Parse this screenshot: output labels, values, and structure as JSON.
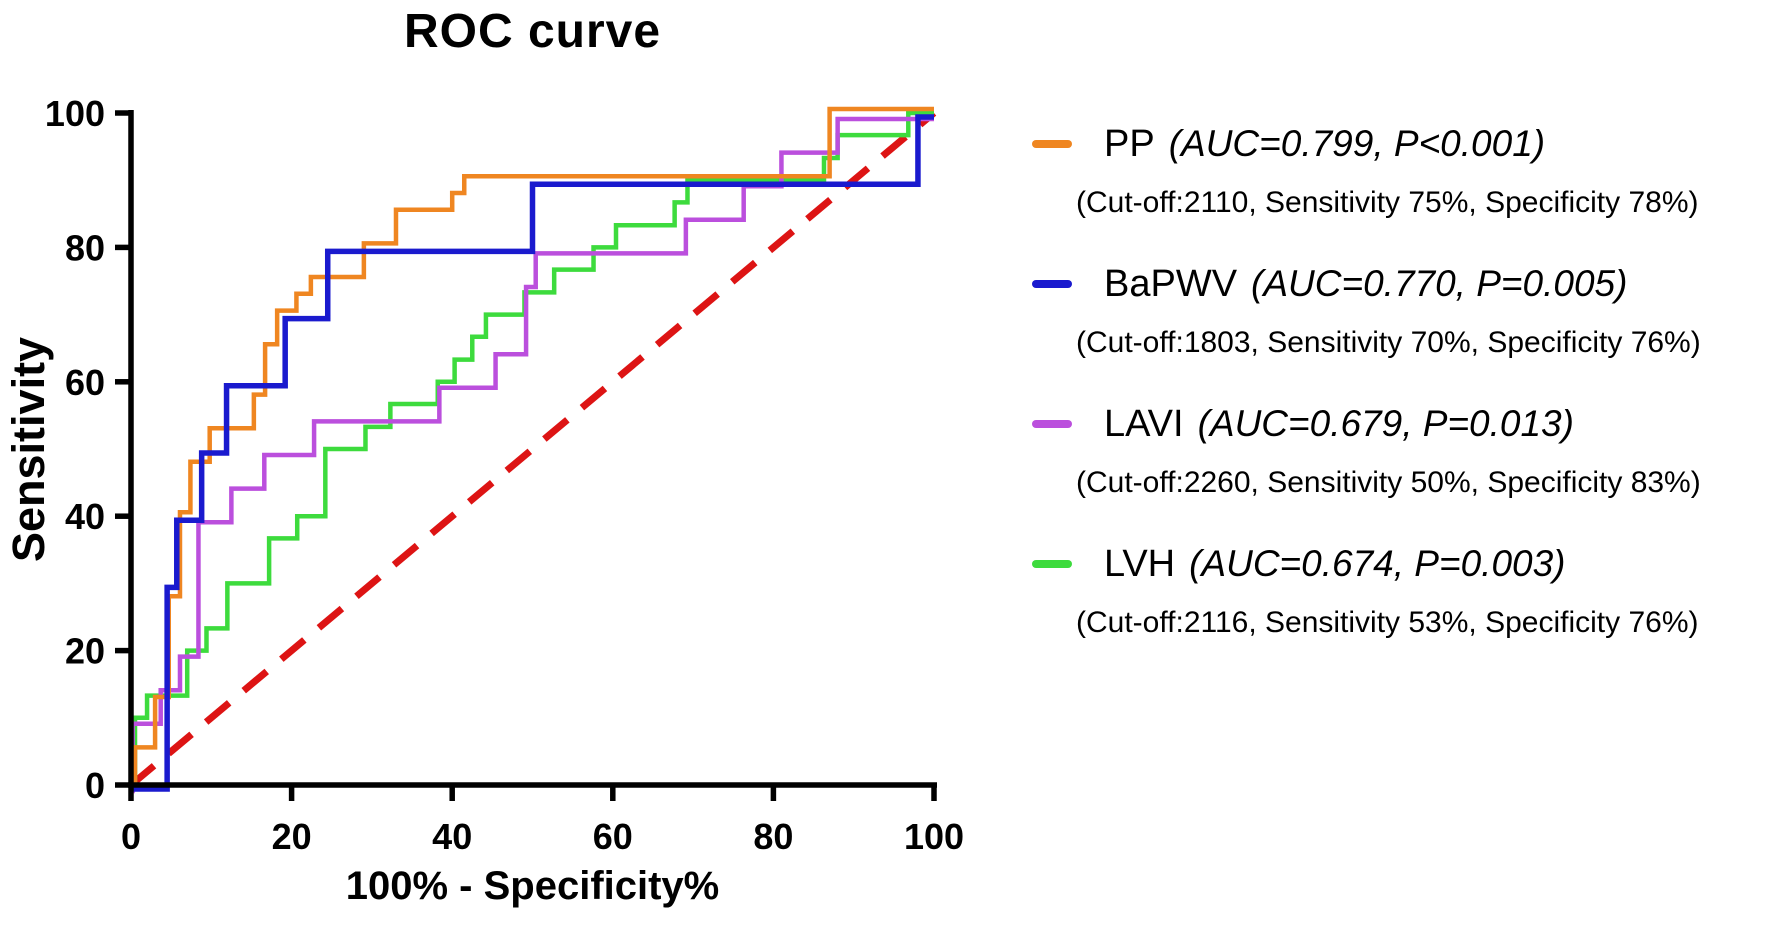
{
  "chart_data": {
    "type": "line",
    "subtype": "roc-step-curves",
    "title": "ROC curve",
    "xlabel": "100% - Specificity%",
    "ylabel": "Sensitivity",
    "xlim": [
      0,
      100
    ],
    "ylim": [
      0,
      100
    ],
    "x_ticks": [
      0,
      20,
      40,
      60,
      80,
      100
    ],
    "y_ticks": [
      0,
      20,
      40,
      60,
      80,
      100
    ],
    "grid": false,
    "legend_position": "right",
    "reference_line": {
      "name": "chance-diagonal",
      "style": "dashed",
      "color": "#dd1414",
      "from": [
        0,
        0
      ],
      "to": [
        100,
        100
      ]
    },
    "steps_encoding": "each step = [x = 100-specificity where curve rises, sensitivity after rise]; staircase starts at (0,0) and ends at (100,100)",
    "series": [
      {
        "name": "PP",
        "color": "#ef8621",
        "auc": 0.799,
        "p_value": "P<0.001",
        "cutoff": 2110,
        "sensitivity_pct": 75,
        "specificity_pct": 78,
        "steps": [
          [
            0.5,
            5
          ],
          [
            3,
            12.5
          ],
          [
            4.7,
            27.5
          ],
          [
            6.1,
            40
          ],
          [
            7.4,
            47.5
          ],
          [
            9.8,
            52.5
          ],
          [
            15.3,
            57.5
          ],
          [
            16.7,
            65
          ],
          [
            18.2,
            70
          ],
          [
            20.6,
            72.5
          ],
          [
            22.4,
            75
          ],
          [
            29,
            80
          ],
          [
            33,
            85
          ],
          [
            40,
            87.5
          ],
          [
            41.5,
            90
          ],
          [
            87,
            100
          ]
        ]
      },
      {
        "name": "BaPWV",
        "color": "#1a1ace",
        "auc": 0.77,
        "p_value": "P=0.005",
        "cutoff": 1803,
        "sensitivity_pct": 70,
        "specificity_pct": 76,
        "steps": [
          [
            4.5,
            30
          ],
          [
            5.7,
            40
          ],
          [
            8.8,
            50
          ],
          [
            11.9,
            60
          ],
          [
            19.2,
            70
          ],
          [
            24.5,
            80
          ],
          [
            50,
            90
          ],
          [
            98,
            100
          ]
        ]
      },
      {
        "name": "LAVI",
        "color": "#bb4fdd",
        "auc": 0.679,
        "p_value": "P=0.013",
        "cutoff": 2260,
        "sensitivity_pct": 50,
        "specificity_pct": 83,
        "steps": [
          [
            0.2,
            10
          ],
          [
            3.7,
            15
          ],
          [
            6.1,
            20
          ],
          [
            8.4,
            40
          ],
          [
            12.5,
            45
          ],
          [
            16.6,
            50
          ],
          [
            22.8,
            55
          ],
          [
            38.4,
            60
          ],
          [
            45.4,
            65
          ],
          [
            49.2,
            75
          ],
          [
            50.4,
            80
          ],
          [
            69.1,
            85
          ],
          [
            76.3,
            90
          ],
          [
            81,
            95
          ],
          [
            88,
            100
          ]
        ]
      },
      {
        "name": "LVH",
        "color": "#3ddb3d",
        "auc": 0.674,
        "p_value": "P=0.003",
        "cutoff": 2116,
        "sensitivity_pct": 53,
        "specificity_pct": 76,
        "steps": [
          [
            0.5,
            10
          ],
          [
            2,
            13.3
          ],
          [
            7,
            20
          ],
          [
            9.4,
            23.3
          ],
          [
            12,
            30
          ],
          [
            17.2,
            36.7
          ],
          [
            20.7,
            40
          ],
          [
            24.2,
            50
          ],
          [
            29.2,
            53.3
          ],
          [
            32.3,
            56.7
          ],
          [
            38.2,
            60
          ],
          [
            40.3,
            63.3
          ],
          [
            42.5,
            66.7
          ],
          [
            44.2,
            70
          ],
          [
            49,
            73.3
          ],
          [
            52.7,
            76.7
          ],
          [
            57.6,
            80
          ],
          [
            60.4,
            83.3
          ],
          [
            67.7,
            86.7
          ],
          [
            69.3,
            90
          ],
          [
            86.3,
            93.3
          ],
          [
            88,
            96.7
          ],
          [
            96.8,
            100
          ]
        ]
      }
    ]
  },
  "legend": {
    "entries": [
      {
        "name": "PP",
        "stats": "(AUC=0.799, P<0.001)",
        "detail": "(Cut-off:2110, Sensitivity 75%, Specificity 78%)",
        "color": "#ef8621"
      },
      {
        "name": "BaPWV",
        "stats": "(AUC=0.770, P=0.005)",
        "detail": "(Cut-off:1803, Sensitivity 70%, Specificity 76%)",
        "color": "#1a1ace"
      },
      {
        "name": "LAVI",
        "stats": "(AUC=0.679, P=0.013)",
        "detail": "(Cut-off:2260, Sensitivity 50%, Specificity 83%)",
        "color": "#bb4fdd"
      },
      {
        "name": "LVH",
        "stats": "(AUC=0.674, P=0.003)",
        "detail": "(Cut-off:2116, Sensitivity 53%, Specificity 76%)",
        "color": "#3ddb3d"
      }
    ]
  }
}
